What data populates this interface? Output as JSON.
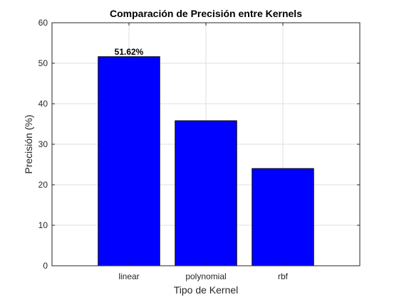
{
  "chart_data": {
    "type": "bar",
    "title": "Comparación de Precisión entre Kernels",
    "xlabel": "Tipo de Kernel",
    "ylabel": "Precisión (%)",
    "categories": [
      "linear",
      "polynomial",
      "rbf"
    ],
    "values": [
      51.62,
      35.8,
      24.0
    ],
    "ylim": [
      0,
      60
    ],
    "yticks": [
      0,
      10,
      20,
      30,
      40,
      50,
      60
    ],
    "grid": true,
    "bar_color": "#0000ff",
    "data_labels": [
      {
        "category": "linear",
        "text": "51.62%"
      }
    ]
  }
}
